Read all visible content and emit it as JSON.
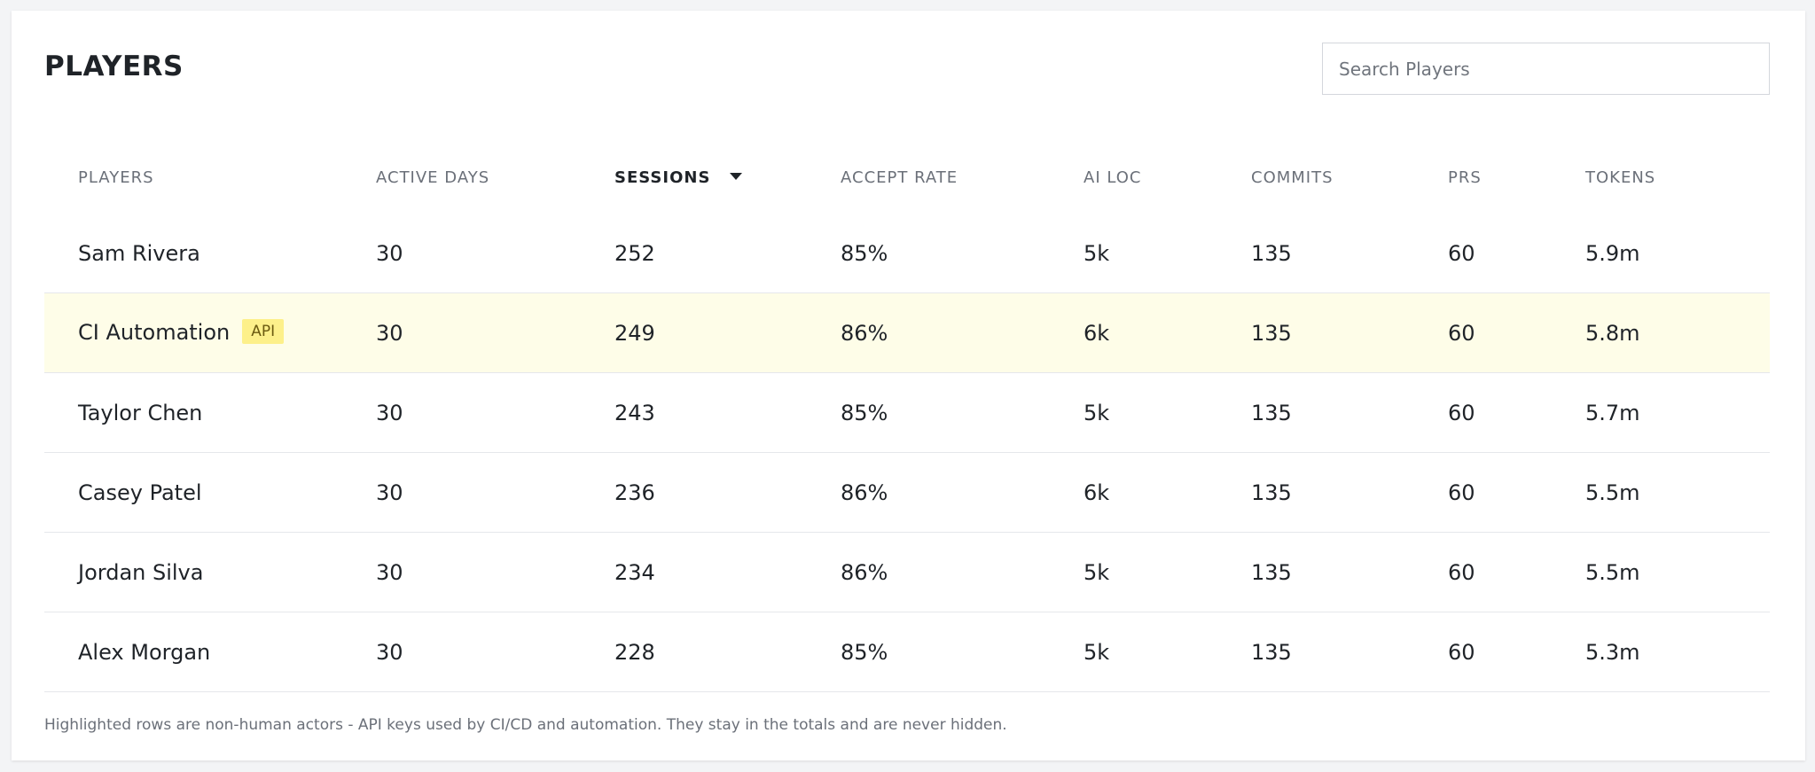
{
  "title": "PLAYERS",
  "search": {
    "placeholder": "Search Players"
  },
  "table": {
    "columns": [
      {
        "label": "PLAYERS"
      },
      {
        "label": "ACTIVE DAYS"
      },
      {
        "label": "SESSIONS",
        "sorted": "descending"
      },
      {
        "label": "ACCEPT RATE"
      },
      {
        "label": "AI LOC"
      },
      {
        "label": "COMMITS"
      },
      {
        "label": "PRS"
      },
      {
        "label": "TOKENS"
      }
    ],
    "rows": [
      {
        "name": "Sam Rivera",
        "badge": "",
        "active_days": "30",
        "sessions": "252",
        "accept_rate": "85%",
        "ai_loc": "5k",
        "commits": "135",
        "prs": "60",
        "tokens": "5.9m"
      },
      {
        "name": "CI Automation",
        "badge": "API",
        "active_days": "30",
        "sessions": "249",
        "accept_rate": "86%",
        "ai_loc": "6k",
        "commits": "135",
        "prs": "60",
        "tokens": "5.8m"
      },
      {
        "name": "Taylor Chen",
        "badge": "",
        "active_days": "30",
        "sessions": "243",
        "accept_rate": "85%",
        "ai_loc": "5k",
        "commits": "135",
        "prs": "60",
        "tokens": "5.7m"
      },
      {
        "name": "Casey Patel",
        "badge": "",
        "active_days": "30",
        "sessions": "236",
        "accept_rate": "86%",
        "ai_loc": "6k",
        "commits": "135",
        "prs": "60",
        "tokens": "5.5m"
      },
      {
        "name": "Jordan Silva",
        "badge": "",
        "active_days": "30",
        "sessions": "234",
        "accept_rate": "86%",
        "ai_loc": "5k",
        "commits": "135",
        "prs": "60",
        "tokens": "5.5m"
      },
      {
        "name": "Alex Morgan",
        "badge": "",
        "active_days": "30",
        "sessions": "228",
        "accept_rate": "85%",
        "ai_loc": "5k",
        "commits": "135",
        "prs": "60",
        "tokens": "5.3m"
      }
    ]
  },
  "footnote": "Highlighted rows are non-human actors - API keys used by CI/CD and automation. They stay in the totals and are never hidden.",
  "colors": {
    "highlight_row": "#fefde8",
    "api_badge": "#fdf08a"
  }
}
